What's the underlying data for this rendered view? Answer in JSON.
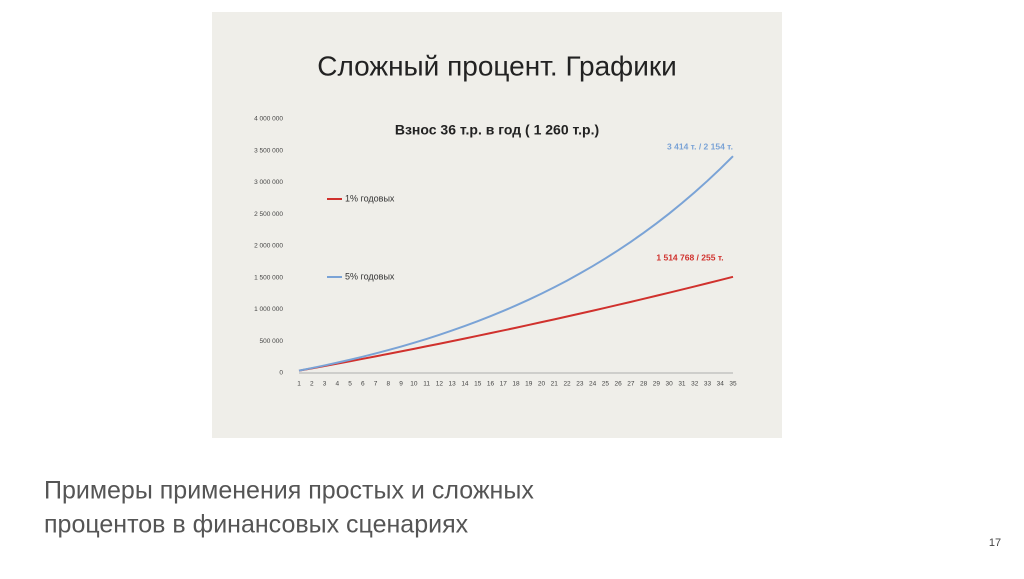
{
  "chart_data": {
    "type": "line",
    "title": "Сложный процент. Графики",
    "subtitle": "Взнос 36 т.р. в год ( 1 260 т.р.)",
    "x": [
      1,
      2,
      3,
      4,
      5,
      6,
      7,
      8,
      9,
      10,
      11,
      12,
      13,
      14,
      15,
      16,
      17,
      18,
      19,
      20,
      21,
      22,
      23,
      24,
      25,
      26,
      27,
      28,
      29,
      30,
      31,
      32,
      33,
      34,
      35
    ],
    "xlim": [
      1,
      35
    ],
    "xticks": [
      1,
      2,
      3,
      4,
      5,
      6,
      7,
      8,
      9,
      10,
      11,
      12,
      13,
      14,
      15,
      16,
      17,
      18,
      19,
      20,
      21,
      22,
      23,
      24,
      25,
      26,
      27,
      28,
      29,
      30,
      31,
      32,
      33,
      34,
      35
    ],
    "ylim": [
      0,
      4000000
    ],
    "yticks": [
      0,
      {
        "value": 500000,
        "label": "500 000"
      },
      {
        "value": 1000000,
        "label": "1 000 000"
      },
      {
        "value": 1500000,
        "label": "1 500 000"
      },
      {
        "value": 2000000,
        "label": "2 000 000"
      },
      {
        "value": 2500000,
        "label": "2 500 000"
      },
      {
        "value": 3000000,
        "label": "3 000 000"
      },
      {
        "value": 3500000,
        "label": "3 500 000"
      },
      {
        "value": 4000000,
        "label": "4 000 000"
      }
    ],
    "grid": false,
    "series": [
      {
        "name": "1% годовых",
        "color": "#d0312d",
        "values": [
          36360,
          73084,
          110175,
          147637,
          185473,
          223688,
          262285,
          301268,
          340641,
          380407,
          420571,
          461137,
          502108,
          543489,
          585284,
          627497,
          670132,
          713193,
          756685,
          800612,
          844978,
          889788,
          935046,
          980756,
          1026924,
          1073553,
          1120649,
          1168215,
          1216257,
          1264780,
          1313788,
          1363286,
          1413279,
          1463772,
          1514768
        ]
      },
      {
        "name": "5% годовых",
        "color": "#7aa3d6",
        "values": [
          37800,
          77490,
          119165,
          162923,
          208869,
          257112,
          307768,
          360956,
          416804,
          475444,
          537016,
          601667,
          669550,
          740828,
          815669,
          894252,
          976765,
          1063403,
          1154373,
          1249892,
          1350187,
          1455496,
          1566071,
          1682175,
          1804084,
          1932088,
          2066492,
          2207617,
          2355798,
          2511388,
          2674757,
          2846295,
          3026410,
          3215531,
          3414108
        ]
      }
    ],
    "annotations": [
      {
        "text": "1 514 768 / 255 т.",
        "color": "#d0312d"
      },
      {
        "text": "3 414 т. / 2 154 т.",
        "color": "#7aa3d6"
      }
    ]
  },
  "caption": [
    "Примеры применения простых и сложных",
    "процентов в финансовых сценариях"
  ],
  "page_number": "17"
}
